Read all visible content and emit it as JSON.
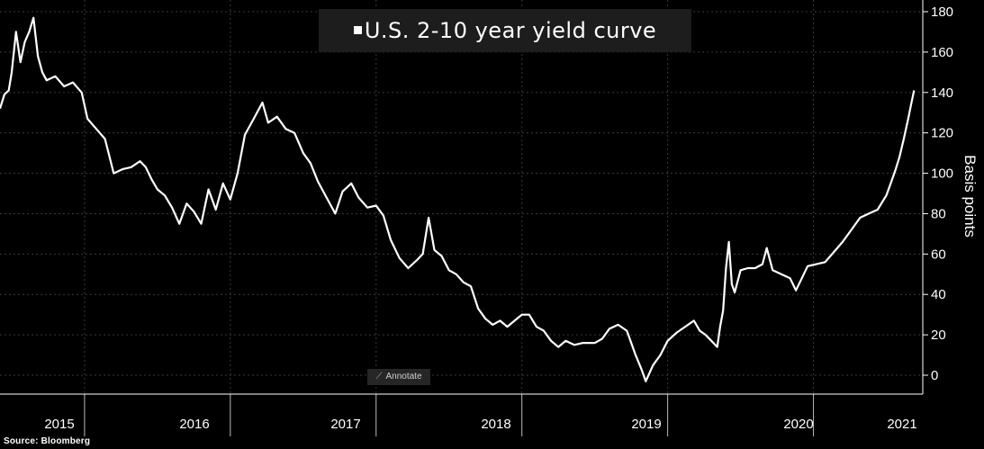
{
  "title": "U.S. 2-10 year yield curve",
  "source": "Source:  Bloomberg",
  "annotate_label": "Annotate",
  "colors": {
    "background": "#000000",
    "line": "#ffffff",
    "grid": "#3a3a3a",
    "title_bg": "#1d1d1d"
  },
  "chart_data": {
    "type": "line",
    "title": "U.S. 2-10 year yield curve",
    "xlabel": "",
    "ylabel": "Basis points",
    "ylim": [
      -5,
      182
    ],
    "xlim": [
      2014.92,
      2021.25
    ],
    "yticks": [
      0,
      20,
      40,
      60,
      80,
      100,
      120,
      140,
      160,
      180
    ],
    "xticks": [
      {
        "label": "2015",
        "pos": 2015.0
      },
      {
        "label": "2016",
        "pos": 2016.0
      },
      {
        "label": "2017",
        "pos": 2017.0
      },
      {
        "label": "2018",
        "pos": 2018.0
      },
      {
        "label": "2019",
        "pos": 2019.0
      },
      {
        "label": "2020",
        "pos": 2020.0
      },
      {
        "label": "2021",
        "pos": 2021.0
      }
    ],
    "grid": true,
    "legend": "top-center",
    "series": [
      {
        "name": "U.S. 2-10 year yield curve",
        "points": [
          [
            2014.92,
            132
          ],
          [
            2014.95,
            139
          ],
          [
            2014.98,
            141
          ],
          [
            2015.0,
            150
          ],
          [
            2015.03,
            170
          ],
          [
            2015.06,
            155
          ],
          [
            2015.09,
            165
          ],
          [
            2015.12,
            170
          ],
          [
            2015.15,
            177
          ],
          [
            2015.18,
            158
          ],
          [
            2015.21,
            150
          ],
          [
            2015.24,
            146
          ],
          [
            2015.3,
            148
          ],
          [
            2015.36,
            143
          ],
          [
            2015.42,
            145
          ],
          [
            2015.48,
            140
          ],
          [
            2015.52,
            127
          ],
          [
            2015.58,
            122
          ],
          [
            2015.64,
            117
          ],
          [
            2015.7,
            100
          ],
          [
            2015.76,
            102
          ],
          [
            2015.82,
            103
          ],
          [
            2015.88,
            106
          ],
          [
            2015.92,
            103
          ],
          [
            2015.96,
            97
          ],
          [
            2016.0,
            92
          ],
          [
            2016.05,
            89
          ],
          [
            2016.1,
            83
          ],
          [
            2016.15,
            75
          ],
          [
            2016.2,
            85
          ],
          [
            2016.25,
            81
          ],
          [
            2016.3,
            75
          ],
          [
            2016.35,
            92
          ],
          [
            2016.4,
            82
          ],
          [
            2016.45,
            95
          ],
          [
            2016.5,
            87
          ],
          [
            2016.55,
            100
          ],
          [
            2016.6,
            119
          ],
          [
            2016.66,
            127
          ],
          [
            2016.72,
            135
          ],
          [
            2016.76,
            125
          ],
          [
            2016.82,
            128
          ],
          [
            2016.88,
            122
          ],
          [
            2016.94,
            120
          ],
          [
            2017.0,
            110
          ],
          [
            2017.05,
            105
          ],
          [
            2017.1,
            96
          ],
          [
            2017.16,
            88
          ],
          [
            2017.22,
            80
          ],
          [
            2017.27,
            91
          ],
          [
            2017.33,
            95
          ],
          [
            2017.38,
            88
          ],
          [
            2017.44,
            83
          ],
          [
            2017.5,
            84
          ],
          [
            2017.55,
            79
          ],
          [
            2017.6,
            67
          ],
          [
            2017.66,
            58
          ],
          [
            2017.72,
            53
          ],
          [
            2017.78,
            57
          ],
          [
            2017.82,
            60
          ],
          [
            2017.86,
            78
          ],
          [
            2017.9,
            62
          ],
          [
            2017.95,
            59
          ],
          [
            2018.0,
            52
          ],
          [
            2018.05,
            50
          ],
          [
            2018.1,
            46
          ],
          [
            2018.15,
            44
          ],
          [
            2018.2,
            33
          ],
          [
            2018.25,
            28
          ],
          [
            2018.3,
            25
          ],
          [
            2018.35,
            27
          ],
          [
            2018.4,
            24
          ],
          [
            2018.45,
            27
          ],
          [
            2018.5,
            30
          ],
          [
            2018.55,
            30
          ],
          [
            2018.6,
            24
          ],
          [
            2018.65,
            22
          ],
          [
            2018.7,
            17
          ],
          [
            2018.75,
            14
          ],
          [
            2018.8,
            17
          ],
          [
            2018.86,
            15
          ],
          [
            2018.92,
            16
          ],
          [
            2019.0,
            16
          ],
          [
            2019.05,
            18
          ],
          [
            2019.1,
            23
          ],
          [
            2019.16,
            25
          ],
          [
            2019.22,
            22
          ],
          [
            2019.28,
            10
          ],
          [
            2019.32,
            3
          ],
          [
            2019.35,
            -3
          ],
          [
            2019.4,
            5
          ],
          [
            2019.45,
            10
          ],
          [
            2019.5,
            17
          ],
          [
            2019.56,
            21
          ],
          [
            2019.62,
            24
          ],
          [
            2019.68,
            27
          ],
          [
            2019.72,
            22
          ],
          [
            2019.76,
            20
          ],
          [
            2019.8,
            17
          ],
          [
            2019.84,
            14
          ],
          [
            2019.86,
            24
          ],
          [
            2019.88,
            32
          ],
          [
            2019.9,
            53
          ],
          [
            2019.92,
            66
          ],
          [
            2019.94,
            45
          ],
          [
            2019.96,
            41
          ],
          [
            2020.0,
            52
          ],
          [
            2020.05,
            53
          ],
          [
            2020.1,
            53
          ],
          [
            2020.15,
            55
          ],
          [
            2020.18,
            63
          ],
          [
            2020.22,
            52
          ],
          [
            2020.28,
            50
          ],
          [
            2020.34,
            48
          ],
          [
            2020.38,
            42
          ],
          [
            2020.42,
            48
          ],
          [
            2020.46,
            54
          ],
          [
            2020.52,
            55
          ],
          [
            2020.58,
            56
          ],
          [
            2020.64,
            61
          ],
          [
            2020.7,
            66
          ],
          [
            2020.76,
            72
          ],
          [
            2020.82,
            78
          ],
          [
            2020.88,
            80
          ],
          [
            2020.94,
            82
          ],
          [
            2021.0,
            89
          ],
          [
            2021.03,
            95
          ],
          [
            2021.06,
            101
          ],
          [
            2021.09,
            108
          ],
          [
            2021.12,
            117
          ],
          [
            2021.15,
            127
          ],
          [
            2021.17,
            134
          ],
          [
            2021.19,
            141
          ]
        ]
      }
    ]
  }
}
